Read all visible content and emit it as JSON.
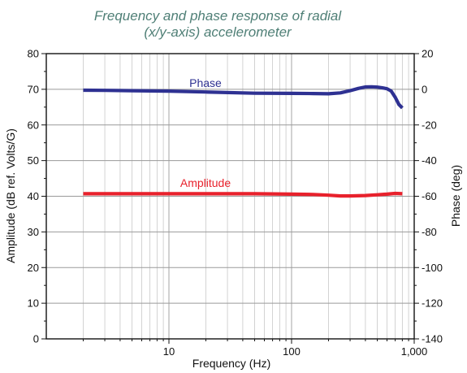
{
  "chart_data": {
    "type": "line",
    "title_lines": [
      "Frequency and phase response of radial",
      "(x/y-axis) accelerometer"
    ],
    "xlabel": "Frequency (Hz)",
    "ylabel_left": "Amplitude (dB ref. Volts/G)",
    "ylabel_right": "Phase (deg)",
    "x_scale": "log",
    "xlim": [
      1,
      1000
    ],
    "ylim_left": [
      0,
      80
    ],
    "ylim_right": [
      -140,
      20
    ],
    "x_ticks": [
      10,
      100,
      1000
    ],
    "x_tick_labels": [
      "10",
      "100",
      "1,000"
    ],
    "y_left_ticks": [
      0,
      10,
      20,
      30,
      40,
      50,
      60,
      70,
      80
    ],
    "y_left_tick_labels": [
      "0",
      "10",
      "20",
      "30",
      "40",
      "50",
      "60",
      "70",
      "80"
    ],
    "y_right_ticks": [
      -140,
      -120,
      -100,
      -80,
      -60,
      -40,
      -20,
      0,
      20
    ],
    "y_right_tick_labels": [
      "-140",
      "-120",
      "-100",
      "-80",
      "-60",
      "-40",
      "-20",
      "0",
      "20"
    ],
    "grid": true,
    "series": [
      {
        "name": "Amplitude",
        "axis": "left",
        "color": "#e8212c",
        "x": [
          2,
          3,
          5,
          10,
          20,
          50,
          100,
          150,
          200,
          250,
          300,
          400,
          500,
          600,
          700,
          800
        ],
        "y": [
          40.7,
          40.7,
          40.7,
          40.7,
          40.7,
          40.7,
          40.6,
          40.5,
          40.3,
          40.1,
          40.1,
          40.2,
          40.4,
          40.6,
          40.8,
          40.7
        ]
      },
      {
        "name": "Phase",
        "axis": "right",
        "color": "#2e3192",
        "x": [
          2,
          3,
          5,
          10,
          20,
          50,
          100,
          150,
          200,
          250,
          300,
          350,
          400,
          450,
          500,
          550,
          600,
          650,
          700,
          750,
          800
        ],
        "y": [
          -0.5,
          -0.6,
          -0.8,
          -1.0,
          -1.5,
          -2.2,
          -2.3,
          -2.4,
          -2.5,
          -2.0,
          -0.8,
          0.5,
          1.3,
          1.4,
          1.2,
          0.8,
          0.3,
          -1.0,
          -4.5,
          -8.5,
          -10.5
        ]
      }
    ]
  }
}
